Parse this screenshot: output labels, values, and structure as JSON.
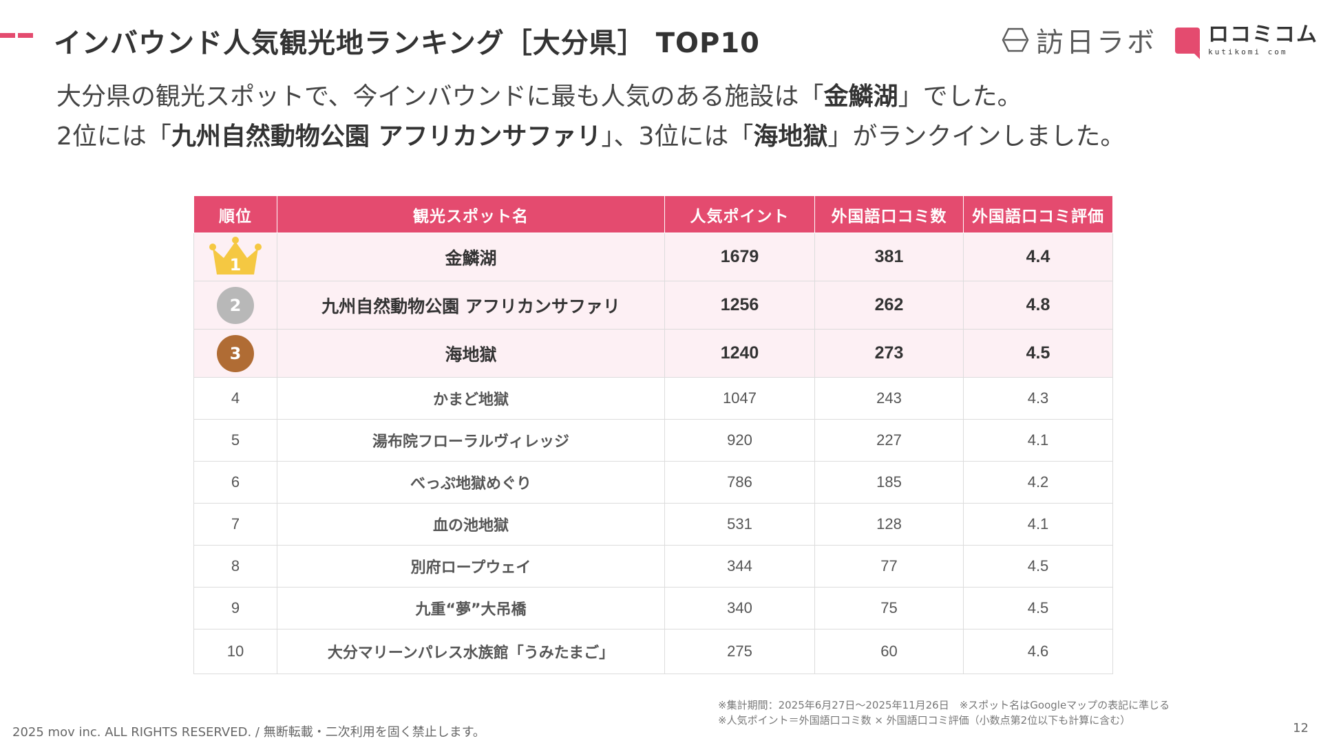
{
  "header": {
    "title": "インバウンド人気観光地ランキング［大分県］ TOP10",
    "logo_houni": "訪日ラボ",
    "logo_kutikomi_main": "ロコミコム",
    "logo_kutikomi_sub": "kutikomi com"
  },
  "lead": {
    "line1_pre": "大分県の観光スポットで、今インバウンドに最も人気のある施設は「",
    "line1_bold": "金鱗湖",
    "line1_post": "」でした。",
    "line2_pre": "2位には「",
    "line2_bold1": "九州自然動物公園 アフリカンサファリ",
    "line2_mid": "」、3位には「",
    "line2_bold2": "海地獄",
    "line2_post": "」がランクインしました。"
  },
  "table": {
    "headers": [
      "順位",
      "観光スポット名",
      "人気ポイント",
      "外国語口コミ数",
      "外国語口コミ評価"
    ],
    "rows": [
      {
        "rank": "1",
        "name": "金鱗湖",
        "points": "1679",
        "reviews": "381",
        "rating": "4.4"
      },
      {
        "rank": "2",
        "name": "九州自然動物公園 アフリカンサファリ",
        "points": "1256",
        "reviews": "262",
        "rating": "4.8"
      },
      {
        "rank": "3",
        "name": "海地獄",
        "points": "1240",
        "reviews": "273",
        "rating": "4.5"
      },
      {
        "rank": "4",
        "name": "かまど地獄",
        "points": "1047",
        "reviews": "243",
        "rating": "4.3"
      },
      {
        "rank": "5",
        "name": "湯布院フローラルヴィレッジ",
        "points": "920",
        "reviews": "227",
        "rating": "4.1"
      },
      {
        "rank": "6",
        "name": "べっぷ地獄めぐり",
        "points": "786",
        "reviews": "185",
        "rating": "4.2"
      },
      {
        "rank": "7",
        "name": "血の池地獄",
        "points": "531",
        "reviews": "128",
        "rating": "4.1"
      },
      {
        "rank": "8",
        "name": "別府ロープウェイ",
        "points": "344",
        "reviews": "77",
        "rating": "4.5"
      },
      {
        "rank": "9",
        "name": "九重“夢”大吊橋",
        "points": "340",
        "reviews": "75",
        "rating": "4.5"
      },
      {
        "rank": "10",
        "name": "大分マリーンパレス水族館「うみたまご」",
        "points": "275",
        "reviews": "60",
        "rating": "4.6"
      }
    ]
  },
  "notes": {
    "line1": "※集計期間：2025年6月27日～2025年11月26日　※スポット名はGoogleマップの表記に準じる",
    "line2": "※人気ポイント＝外国語口コミ数 × 外国語口コミ評価（小数点第2位以下も計算に含む）"
  },
  "footer": {
    "copyright": "2025 mov inc. ALL RIGHTS RESERVED. / 無断転載・二次利用を固く禁止します。",
    "page_number": "12"
  },
  "colors": {
    "accent": "#e44b6f",
    "top_row_bg": "#fdf0f4",
    "gold": "#f5c842",
    "silver": "#b8b8b8",
    "bronze": "#b06c34"
  },
  "icons": {
    "rank1": "crown-icon",
    "rank2": "silver-medal-icon",
    "rank3": "bronze-medal-icon"
  }
}
